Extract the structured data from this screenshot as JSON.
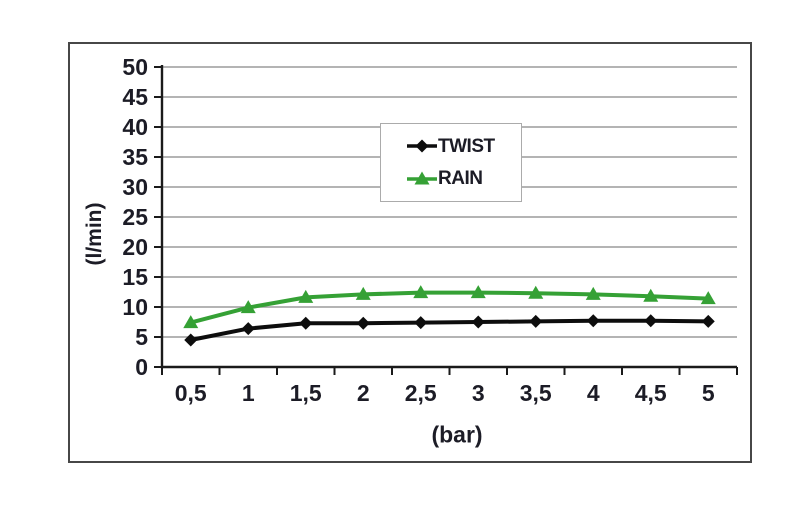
{
  "chart_data": {
    "type": "line",
    "title": "",
    "xlabel": "(bar)",
    "ylabel": "(l/min)",
    "x": [
      0.5,
      1,
      1.5,
      2,
      2.5,
      3,
      3.5,
      4,
      4.5,
      5
    ],
    "x_tick_labels": [
      "0,5",
      "1",
      "1,5",
      "2",
      "2,5",
      "3",
      "3,5",
      "4",
      "4,5",
      "5"
    ],
    "ylim": [
      0,
      50
    ],
    "y_tick_step": 5,
    "y_tick_labels": [
      "0",
      "5",
      "10",
      "15",
      "20",
      "25",
      "30",
      "35",
      "40",
      "45",
      "50"
    ],
    "grid": true,
    "legend_position": "upper-center-inside",
    "series": [
      {
        "name": "TWIST",
        "marker": "diamond",
        "color": "#0d0d0d",
        "values": [
          4.5,
          6.4,
          7.3,
          7.3,
          7.4,
          7.5,
          7.6,
          7.7,
          7.7,
          7.6
        ]
      },
      {
        "name": "RAIN",
        "marker": "triangle",
        "color": "#35a135",
        "values": [
          7.4,
          9.9,
          11.6,
          12.1,
          12.4,
          12.4,
          12.3,
          12.1,
          11.8,
          11.4
        ]
      }
    ]
  },
  "colors": {
    "text": "#1c1c26",
    "gridline": "#9b9b9b",
    "axis": "#1a1a1a",
    "frame_border": "#474747",
    "legend_border": "#ababab",
    "background": "#ffffff"
  }
}
